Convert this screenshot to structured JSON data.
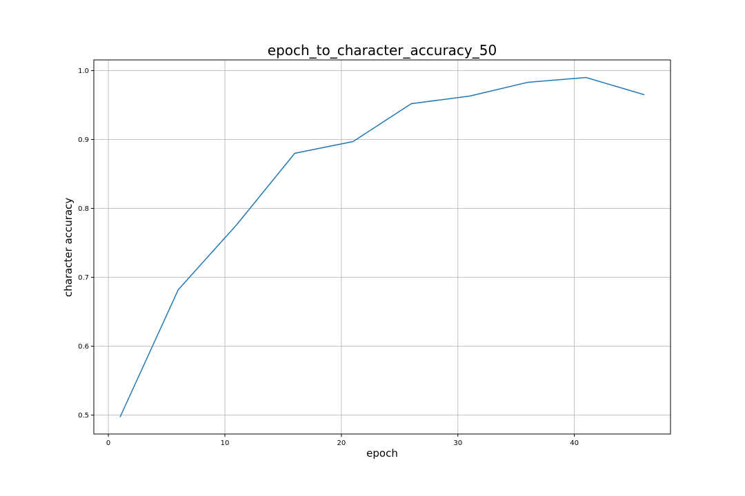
{
  "chart_data": {
    "type": "line",
    "title": "epoch_to_character_accuracy_50",
    "xlabel": "epoch",
    "ylabel": "character accuracy",
    "xlim": [
      -1.25,
      48.25
    ],
    "ylim": [
      0.4725,
      1.0155
    ],
    "xticks": [
      0,
      10,
      20,
      30,
      40
    ],
    "xtick_labels": [
      "0",
      "10",
      "20",
      "30",
      "40"
    ],
    "yticks": [
      0.5,
      0.6,
      0.7,
      0.8,
      0.9,
      1.0
    ],
    "ytick_labels": [
      "0.5",
      "0.6",
      "0.7",
      "0.8",
      "0.9",
      "1.0"
    ],
    "grid": true,
    "series": [
      {
        "color": "#1f77b4",
        "x": [
          1,
          6,
          11,
          16,
          21,
          26,
          31,
          36,
          41,
          46
        ],
        "values": [
          0.497,
          0.682,
          0.776,
          0.88,
          0.897,
          0.952,
          0.963,
          0.983,
          0.99,
          0.965
        ]
      }
    ]
  }
}
